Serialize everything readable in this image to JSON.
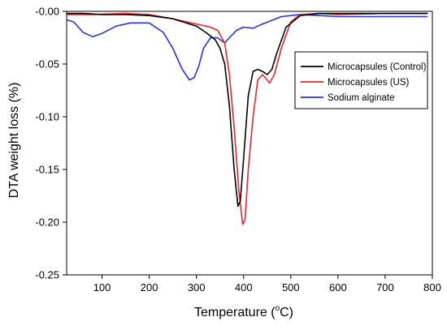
{
  "chart_data": {
    "type": "line",
    "title": "",
    "xlabel": "Temperature (°C)",
    "xlabel_main": "Temperature (",
    "xlabel_sup": "o",
    "xlabel_end": "C)",
    "ylabel": "DTA weight loss (%)",
    "xlim": [
      25,
      800
    ],
    "ylim": [
      -0.25,
      0.0
    ],
    "xticks": [
      100,
      200,
      300,
      400,
      500,
      600,
      700,
      800
    ],
    "yticks": [
      -0.25,
      -0.2,
      -0.15,
      -0.1,
      -0.05,
      0.0
    ],
    "xtick_labels": [
      "100",
      "200",
      "300",
      "400",
      "500",
      "600",
      "700",
      "800"
    ],
    "ytick_labels": [
      "-0.25",
      "-0.20",
      "-0.15",
      "-0.10",
      "-0.05",
      "-0.00"
    ],
    "legend_position": "top-right",
    "grid": false,
    "series": [
      {
        "name": "Microcapsules (Control)",
        "color": "#000000",
        "points": [
          [
            25,
            -0.002
          ],
          [
            60,
            -0.002
          ],
          [
            100,
            -0.003
          ],
          [
            150,
            -0.003
          ],
          [
            200,
            -0.004
          ],
          [
            250,
            -0.007
          ],
          [
            300,
            -0.014
          ],
          [
            320,
            -0.02
          ],
          [
            340,
            -0.027
          ],
          [
            350,
            -0.035
          ],
          [
            360,
            -0.05
          ],
          [
            370,
            -0.09
          ],
          [
            380,
            -0.15
          ],
          [
            388,
            -0.185
          ],
          [
            393,
            -0.18
          ],
          [
            400,
            -0.14
          ],
          [
            410,
            -0.08
          ],
          [
            420,
            -0.057
          ],
          [
            430,
            -0.055
          ],
          [
            440,
            -0.057
          ],
          [
            450,
            -0.06
          ],
          [
            460,
            -0.055
          ],
          [
            470,
            -0.04
          ],
          [
            490,
            -0.015
          ],
          [
            520,
            -0.004
          ],
          [
            560,
            -0.002
          ],
          [
            600,
            -0.002
          ],
          [
            700,
            -0.002
          ],
          [
            790,
            -0.002
          ]
        ]
      },
      {
        "name": "Microcapsules (US)",
        "color": "#e8262b",
        "points": [
          [
            25,
            -0.003
          ],
          [
            80,
            -0.003
          ],
          [
            150,
            -0.002
          ],
          [
            200,
            -0.003
          ],
          [
            250,
            -0.007
          ],
          [
            300,
            -0.012
          ],
          [
            330,
            -0.015
          ],
          [
            345,
            -0.018
          ],
          [
            360,
            -0.03
          ],
          [
            370,
            -0.06
          ],
          [
            380,
            -0.11
          ],
          [
            390,
            -0.17
          ],
          [
            398,
            -0.202
          ],
          [
            403,
            -0.198
          ],
          [
            410,
            -0.15
          ],
          [
            420,
            -0.1
          ],
          [
            430,
            -0.065
          ],
          [
            440,
            -0.06
          ],
          [
            450,
            -0.065
          ],
          [
            455,
            -0.068
          ],
          [
            465,
            -0.06
          ],
          [
            480,
            -0.035
          ],
          [
            500,
            -0.01
          ],
          [
            520,
            -0.003
          ],
          [
            560,
            -0.002
          ],
          [
            600,
            -0.003
          ],
          [
            700,
            -0.002
          ],
          [
            790,
            -0.002
          ]
        ]
      },
      {
        "name": "Sodium alginate",
        "color": "#2b32d6",
        "points": [
          [
            25,
            -0.008
          ],
          [
            40,
            -0.01
          ],
          [
            60,
            -0.02
          ],
          [
            80,
            -0.024
          ],
          [
            100,
            -0.021
          ],
          [
            130,
            -0.014
          ],
          [
            160,
            -0.011
          ],
          [
            200,
            -0.011
          ],
          [
            230,
            -0.02
          ],
          [
            250,
            -0.035
          ],
          [
            270,
            -0.055
          ],
          [
            285,
            -0.065
          ],
          [
            295,
            -0.063
          ],
          [
            305,
            -0.052
          ],
          [
            315,
            -0.035
          ],
          [
            330,
            -0.025
          ],
          [
            345,
            -0.025
          ],
          [
            360,
            -0.03
          ],
          [
            370,
            -0.025
          ],
          [
            385,
            -0.018
          ],
          [
            400,
            -0.015
          ],
          [
            420,
            -0.016
          ],
          [
            440,
            -0.012
          ],
          [
            480,
            -0.005
          ],
          [
            520,
            -0.003
          ],
          [
            560,
            -0.004
          ],
          [
            600,
            -0.005
          ],
          [
            700,
            -0.005
          ],
          [
            790,
            -0.005
          ]
        ]
      }
    ]
  }
}
